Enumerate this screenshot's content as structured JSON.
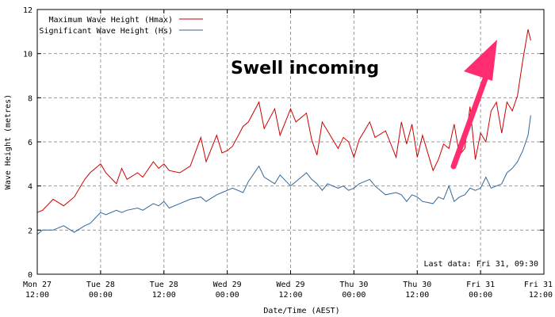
{
  "chart_data": {
    "type": "line",
    "ylabel": "Wave Height (metres)",
    "xlabel": "Date/Time (AEST)",
    "ylim": [
      0,
      12
    ],
    "yticks": [
      0,
      2,
      4,
      6,
      8,
      10,
      12
    ],
    "xlim": [
      "2023-03-27T12:00",
      "2023-03-31T12:00"
    ],
    "xticks": [
      {
        "t": "2023-03-27T12:00",
        "day": "Mon 27",
        "time": "12:00"
      },
      {
        "t": "2023-03-28T00:00",
        "day": "Tue 28",
        "time": "00:00"
      },
      {
        "t": "2023-03-28T12:00",
        "day": "Tue 28",
        "time": "12:00"
      },
      {
        "t": "2023-03-29T00:00",
        "day": "Wed 29",
        "time": "00:00"
      },
      {
        "t": "2023-03-29T12:00",
        "day": "Wed 29",
        "time": "12:00"
      },
      {
        "t": "2023-03-30T00:00",
        "day": "Thu 30",
        "time": "00:00"
      },
      {
        "t": "2023-03-30T12:00",
        "day": "Thu 30",
        "time": "12:00"
      },
      {
        "t": "2023-03-31T00:00",
        "day": "Fri 31",
        "time": "00:00"
      },
      {
        "t": "2023-03-31T12:00",
        "day": "Fri 31",
        "time": "12:00"
      }
    ],
    "grid": true,
    "legend_position": "top-left",
    "series": [
      {
        "name": "Maximum Wave Height (Hmax)",
        "color": "#cc0000",
        "x": [
          "2023-03-27T12:00",
          "2023-03-27T13:00",
          "2023-03-27T15:00",
          "2023-03-27T17:00",
          "2023-03-27T19:00",
          "2023-03-27T21:00",
          "2023-03-27T22:00",
          "2023-03-28T00:00",
          "2023-03-28T01:00",
          "2023-03-28T03:00",
          "2023-03-28T04:00",
          "2023-03-28T05:00",
          "2023-03-28T07:00",
          "2023-03-28T08:00",
          "2023-03-28T10:00",
          "2023-03-28T11:00",
          "2023-03-28T12:00",
          "2023-03-28T13:00",
          "2023-03-28T15:00",
          "2023-03-28T17:00",
          "2023-03-28T19:00",
          "2023-03-28T20:00",
          "2023-03-28T22:00",
          "2023-03-28T23:00",
          "2023-03-29T00:00",
          "2023-03-29T01:00",
          "2023-03-29T03:00",
          "2023-03-29T04:00",
          "2023-03-29T06:00",
          "2023-03-29T07:00",
          "2023-03-29T09:00",
          "2023-03-29T10:00",
          "2023-03-29T12:00",
          "2023-03-29T13:00",
          "2023-03-29T15:00",
          "2023-03-29T16:00",
          "2023-03-29T17:00",
          "2023-03-29T18:00",
          "2023-03-29T19:00",
          "2023-03-29T21:00",
          "2023-03-29T22:00",
          "2023-03-29T23:00",
          "2023-03-30T00:00",
          "2023-03-30T01:00",
          "2023-03-30T03:00",
          "2023-03-30T04:00",
          "2023-03-30T06:00",
          "2023-03-30T08:00",
          "2023-03-30T09:00",
          "2023-03-30T10:00",
          "2023-03-30T11:00",
          "2023-03-30T12:00",
          "2023-03-30T13:00",
          "2023-03-30T15:00",
          "2023-03-30T16:00",
          "2023-03-30T17:00",
          "2023-03-30T18:00",
          "2023-03-30T19:00",
          "2023-03-30T20:00",
          "2023-03-30T21:00",
          "2023-03-30T22:00",
          "2023-03-30T23:00",
          "2023-03-31T00:00",
          "2023-03-31T01:00",
          "2023-03-31T02:00",
          "2023-03-31T03:00",
          "2023-03-31T04:00",
          "2023-03-31T05:00",
          "2023-03-31T06:00",
          "2023-03-31T07:00",
          "2023-03-31T08:00",
          "2023-03-31T09:00",
          "2023-03-31T09:30"
        ],
        "values": [
          2.8,
          2.9,
          3.4,
          3.1,
          3.5,
          4.3,
          4.6,
          5.0,
          4.6,
          4.1,
          4.8,
          4.3,
          4.6,
          4.4,
          5.1,
          4.8,
          5.0,
          4.7,
          4.6,
          4.9,
          6.2,
          5.1,
          6.3,
          5.5,
          5.6,
          5.8,
          6.7,
          6.9,
          7.8,
          6.6,
          7.5,
          6.3,
          7.5,
          6.9,
          7.3,
          6.1,
          5.4,
          6.9,
          6.5,
          5.7,
          6.2,
          6.0,
          5.3,
          6.1,
          6.9,
          6.2,
          6.5,
          5.3,
          6.9,
          5.9,
          6.8,
          5.3,
          6.3,
          4.7,
          5.2,
          5.9,
          5.7,
          6.8,
          5.4,
          5.7,
          7.6,
          5.2,
          6.4,
          6.0,
          7.4,
          7.8,
          6.4,
          7.8,
          7.4,
          8.1,
          9.7,
          11.1,
          10.6
        ]
      },
      {
        "name": "Significant Wave Height (Hs)",
        "color": "#336699",
        "x": [
          "2023-03-27T12:00",
          "2023-03-27T13:00",
          "2023-03-27T15:00",
          "2023-03-27T17:00",
          "2023-03-27T19:00",
          "2023-03-27T21:00",
          "2023-03-27T22:00",
          "2023-03-28T00:00",
          "2023-03-28T01:00",
          "2023-03-28T03:00",
          "2023-03-28T04:00",
          "2023-03-28T05:00",
          "2023-03-28T07:00",
          "2023-03-28T08:00",
          "2023-03-28T10:00",
          "2023-03-28T11:00",
          "2023-03-28T12:00",
          "2023-03-28T13:00",
          "2023-03-28T15:00",
          "2023-03-28T17:00",
          "2023-03-28T19:00",
          "2023-03-28T20:00",
          "2023-03-28T22:00",
          "2023-03-28T23:00",
          "2023-03-29T00:00",
          "2023-03-29T01:00",
          "2023-03-29T03:00",
          "2023-03-29T04:00",
          "2023-03-29T06:00",
          "2023-03-29T07:00",
          "2023-03-29T09:00",
          "2023-03-29T10:00",
          "2023-03-29T12:00",
          "2023-03-29T13:00",
          "2023-03-29T15:00",
          "2023-03-29T16:00",
          "2023-03-29T17:00",
          "2023-03-29T18:00",
          "2023-03-29T19:00",
          "2023-03-29T21:00",
          "2023-03-29T22:00",
          "2023-03-29T23:00",
          "2023-03-30T00:00",
          "2023-03-30T01:00",
          "2023-03-30T03:00",
          "2023-03-30T04:00",
          "2023-03-30T06:00",
          "2023-03-30T08:00",
          "2023-03-30T09:00",
          "2023-03-30T10:00",
          "2023-03-30T11:00",
          "2023-03-30T12:00",
          "2023-03-30T13:00",
          "2023-03-30T15:00",
          "2023-03-30T16:00",
          "2023-03-30T17:00",
          "2023-03-30T18:00",
          "2023-03-30T19:00",
          "2023-03-30T20:00",
          "2023-03-30T21:00",
          "2023-03-30T22:00",
          "2023-03-30T23:00",
          "2023-03-31T00:00",
          "2023-03-31T01:00",
          "2023-03-31T02:00",
          "2023-03-31T03:00",
          "2023-03-31T04:00",
          "2023-03-31T05:00",
          "2023-03-31T06:00",
          "2023-03-31T07:00",
          "2023-03-31T08:00",
          "2023-03-31T09:00",
          "2023-03-31T09:30"
        ],
        "values": [
          1.8,
          2.0,
          2.0,
          2.2,
          1.9,
          2.2,
          2.3,
          2.8,
          2.7,
          2.9,
          2.8,
          2.9,
          3.0,
          2.9,
          3.2,
          3.1,
          3.3,
          3.0,
          3.2,
          3.4,
          3.5,
          3.3,
          3.6,
          3.7,
          3.8,
          3.9,
          3.7,
          4.2,
          4.9,
          4.4,
          4.1,
          4.5,
          4.0,
          4.2,
          4.6,
          4.3,
          4.1,
          3.8,
          4.1,
          3.9,
          4.0,
          3.8,
          3.9,
          4.1,
          4.3,
          4.0,
          3.6,
          3.7,
          3.6,
          3.3,
          3.6,
          3.5,
          3.3,
          3.2,
          3.5,
          3.4,
          4.0,
          3.3,
          3.5,
          3.6,
          3.9,
          3.8,
          3.9,
          4.4,
          3.9,
          4.0,
          4.1,
          4.6,
          4.8,
          5.1,
          5.6,
          6.3,
          7.2
        ]
      }
    ],
    "annotations": {
      "callout": "Swell incoming",
      "callout_color": "#ff2d6f",
      "last_data": "Last data: Fri 31, 09:30"
    }
  }
}
